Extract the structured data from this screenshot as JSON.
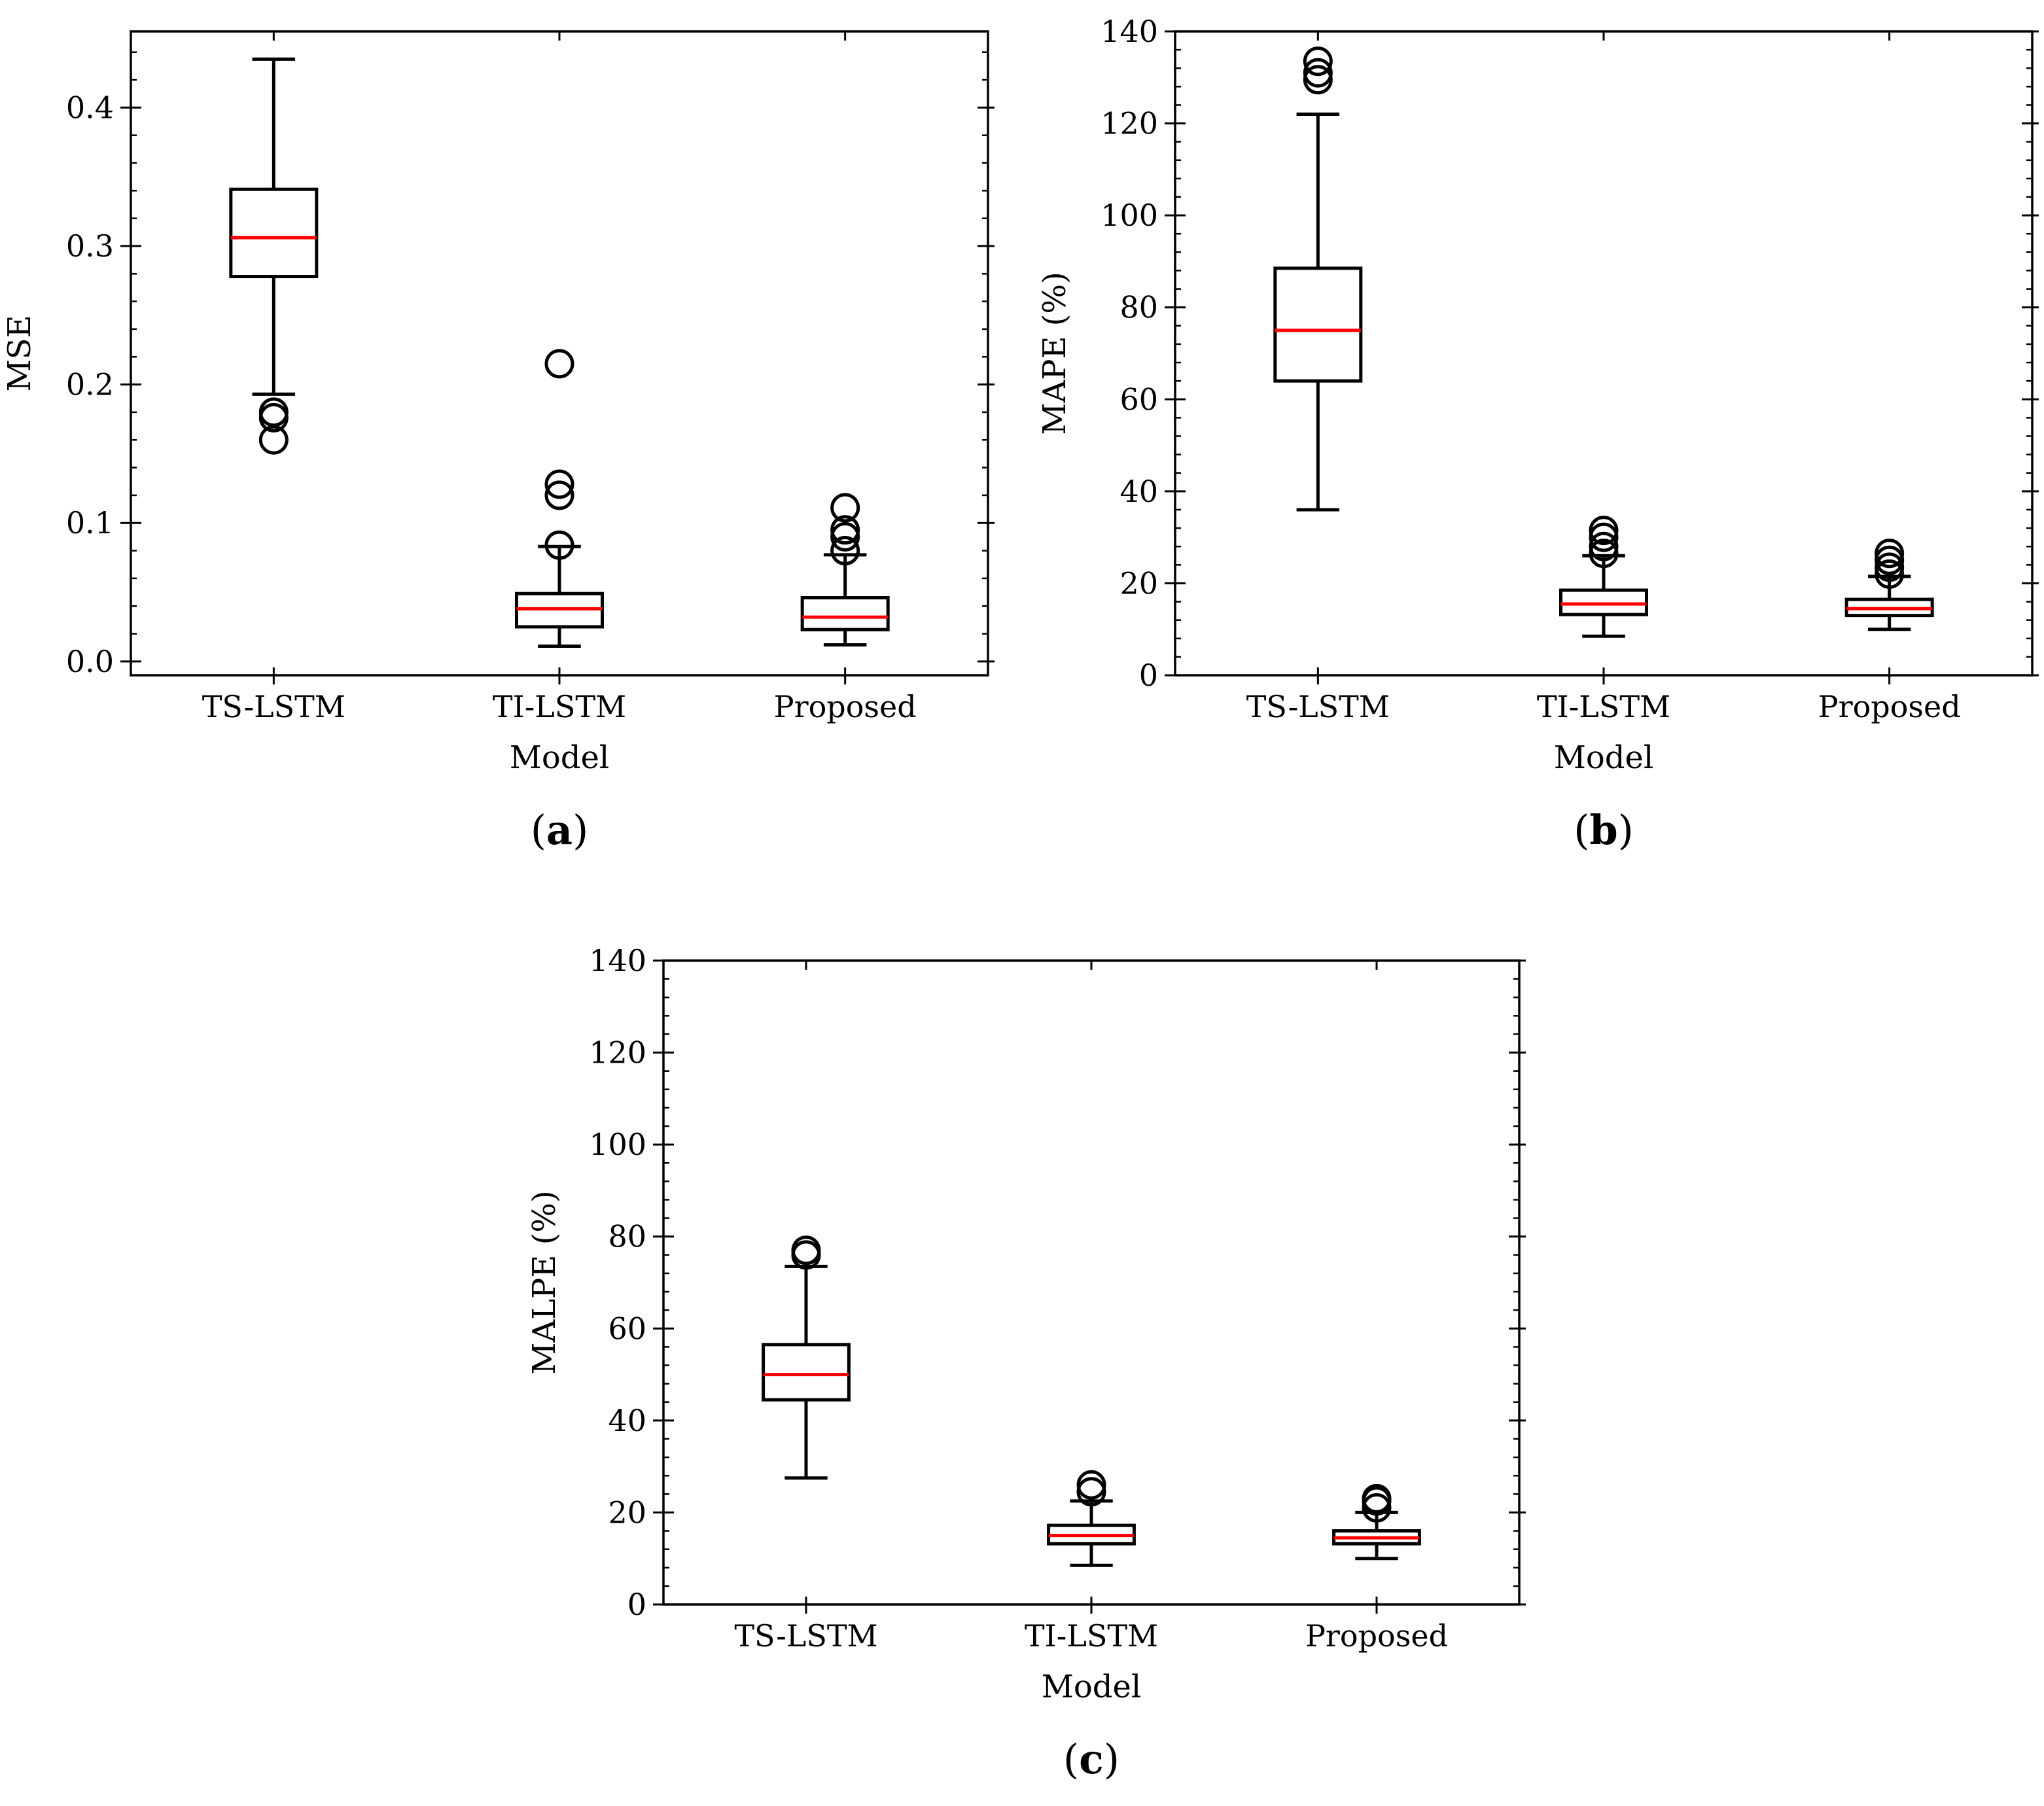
{
  "colors": {
    "box": "#000000",
    "median": "#ff0000",
    "background": "#ffffff"
  },
  "chart_data": [
    {
      "type": "box",
      "panel_label": "(a)",
      "panel_letter": "a",
      "xlabel": "Model",
      "ylabel": "MSE",
      "ylim": [
        -0.01,
        0.455
      ],
      "yticks": [
        0.0,
        0.1,
        0.2,
        0.3,
        0.4
      ],
      "ytick_labels": [
        "0.0",
        "0.1",
        "0.2",
        "0.3",
        "0.4"
      ],
      "minor_step": 0.02,
      "categories": [
        "TS-LSTM",
        "TI-LSTM",
        "Proposed"
      ],
      "boxes": [
        {
          "name": "TS-LSTM",
          "whisker_low": 0.193,
          "q1": 0.278,
          "median": 0.306,
          "q3": 0.341,
          "whisker_high": 0.435,
          "outliers": [
            0.18,
            0.176,
            0.16
          ]
        },
        {
          "name": "TI-LSTM",
          "whisker_low": 0.011,
          "q1": 0.025,
          "median": 0.038,
          "q3": 0.049,
          "whisker_high": 0.083,
          "outliers": [
            0.084,
            0.12,
            0.128,
            0.215
          ]
        },
        {
          "name": "Proposed",
          "whisker_low": 0.012,
          "q1": 0.023,
          "median": 0.032,
          "q3": 0.046,
          "whisker_high": 0.077,
          "outliers": [
            0.08,
            0.09,
            0.095,
            0.111
          ]
        }
      ]
    },
    {
      "type": "box",
      "panel_label": "(b)",
      "panel_letter": "b",
      "xlabel": "Model",
      "ylabel": "MAPE (%)",
      "ylim": [
        0,
        140
      ],
      "yticks": [
        0,
        20,
        40,
        60,
        80,
        100,
        120,
        140
      ],
      "ytick_labels": [
        "0",
        "20",
        "40",
        "60",
        "80",
        "100",
        "120",
        "140"
      ],
      "minor_step": 4,
      "categories": [
        "TS-LSTM",
        "TI-LSTM",
        "Proposed"
      ],
      "boxes": [
        {
          "name": "TS-LSTM",
          "whisker_low": 36,
          "q1": 64,
          "median": 75,
          "q3": 88.5,
          "whisker_high": 122,
          "outliers": [
            129.5,
            131,
            133.5
          ]
        },
        {
          "name": "TI-LSTM",
          "whisker_low": 8.5,
          "q1": 13.2,
          "median": 15.5,
          "q3": 18.5,
          "whisker_high": 26,
          "outliers": [
            26.5,
            28,
            30,
            31.5
          ]
        },
        {
          "name": "Proposed",
          "whisker_low": 10,
          "q1": 13,
          "median": 14.5,
          "q3": 16.5,
          "whisker_high": 21.5,
          "outliers": [
            22,
            23.5,
            25,
            26.5
          ]
        }
      ]
    },
    {
      "type": "box",
      "panel_label": "(c)",
      "panel_letter": "c",
      "xlabel": "Model",
      "ylabel": "MALPE (%)",
      "ylim": [
        0,
        140
      ],
      "yticks": [
        0,
        20,
        40,
        60,
        80,
        100,
        120,
        140
      ],
      "ytick_labels": [
        "0",
        "20",
        "40",
        "60",
        "80",
        "100",
        "120",
        "140"
      ],
      "minor_step": 4,
      "categories": [
        "TS-LSTM",
        "TI-LSTM",
        "Proposed"
      ],
      "boxes": [
        {
          "name": "TS-LSTM",
          "whisker_low": 27.5,
          "q1": 44.5,
          "median": 50,
          "q3": 56.5,
          "whisker_high": 73.5,
          "outliers": [
            76,
            77
          ]
        },
        {
          "name": "TI-LSTM",
          "whisker_low": 8.5,
          "q1": 13.2,
          "median": 15,
          "q3": 17.2,
          "whisker_high": 22.5,
          "outliers": [
            24.5,
            26
          ]
        },
        {
          "name": "Proposed",
          "whisker_low": 10,
          "q1": 13.2,
          "median": 14.5,
          "q3": 16,
          "whisker_high": 20,
          "outliers": [
            21,
            22.5,
            23
          ]
        }
      ]
    }
  ]
}
